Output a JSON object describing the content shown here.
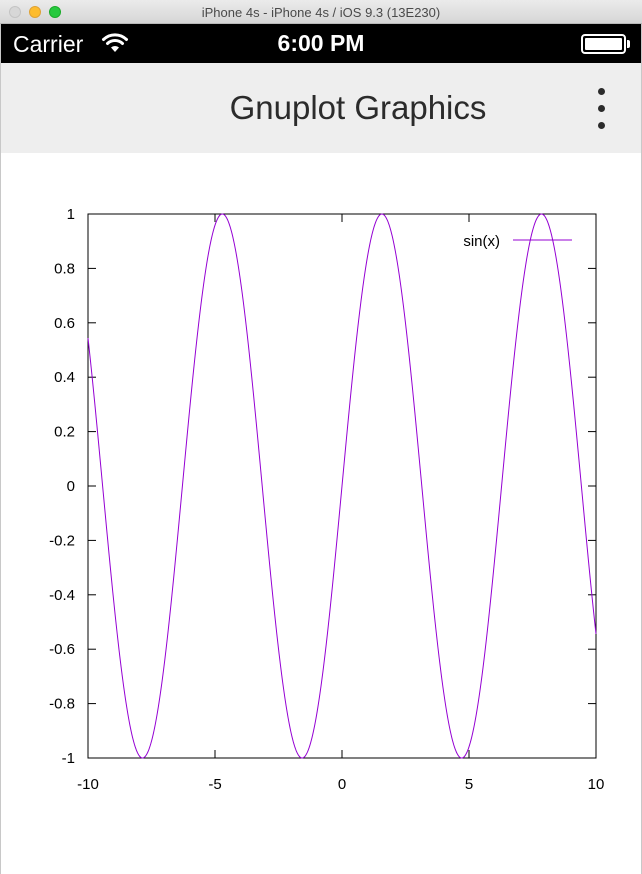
{
  "window": {
    "title": "iPhone 4s - iPhone 4s / iOS 9.3 (13E230)"
  },
  "status_bar": {
    "carrier": "Carrier",
    "time": "6:00 PM",
    "wifi_icon": "wifi-icon",
    "battery_icon": "battery-icon"
  },
  "app_bar": {
    "title": "Gnuplot Graphics",
    "menu_icon": "overflow-menu-icon"
  },
  "chart_data": {
    "type": "line",
    "title": "",
    "xlabel": "",
    "ylabel": "",
    "xlim": [
      -10,
      10
    ],
    "ylim": [
      -1,
      1
    ],
    "x_ticks": [
      "-10",
      "-5",
      "0",
      "5",
      "10"
    ],
    "y_ticks": [
      "1",
      "0.8",
      "0.6",
      "0.4",
      "0.2",
      "0",
      "-0.2",
      "-0.4",
      "-0.6",
      "-0.8",
      "-1"
    ],
    "grid": false,
    "legend_position": "top-right",
    "series": [
      {
        "name": "sin(x)",
        "function": "sin(x)",
        "color": "#9400d3",
        "x": [
          -10,
          -9,
          -8,
          -7.854,
          -7,
          -6,
          -5,
          -4.712,
          -4,
          -3,
          -2,
          -1.571,
          -1,
          0,
          1,
          1.571,
          2,
          3,
          4,
          4.712,
          5,
          6,
          7,
          7.854,
          8,
          9,
          10
        ],
        "y": [
          0.544,
          -0.412,
          -0.989,
          -1,
          -0.657,
          0.279,
          0.959,
          1,
          0.757,
          -0.141,
          -0.909,
          -1,
          -0.841,
          0,
          0.841,
          1,
          0.909,
          0.141,
          -0.757,
          -1,
          -0.959,
          -0.279,
          0.657,
          1,
          0.989,
          0.412,
          -0.544
        ]
      }
    ]
  }
}
